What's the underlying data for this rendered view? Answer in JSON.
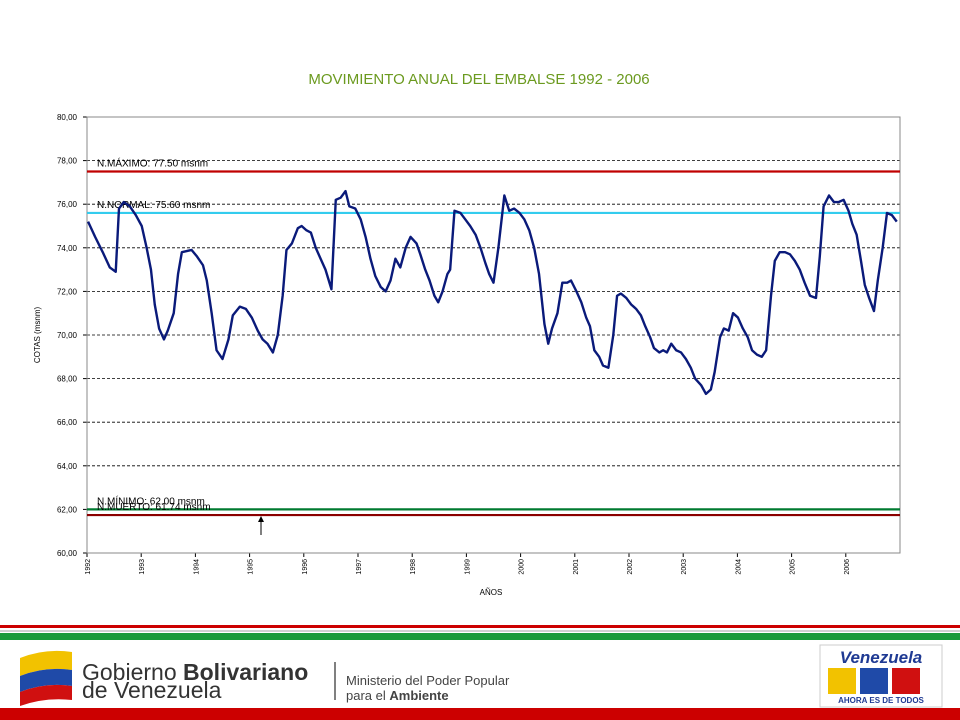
{
  "chart_data": {
    "type": "line",
    "title": "MOVIMIENTO ANUAL DEL EMBALSE 1992 - 2006",
    "xlabel": "AÑOS",
    "ylabel": "COTAS (msnm)",
    "color": "#0a1a7a",
    "grid": true,
    "xlim": [
      1992,
      2007
    ],
    "xticks": [
      1992,
      1993,
      1994,
      1995,
      1996,
      1997,
      1998,
      1999,
      2000,
      2001,
      2002,
      2003,
      2004,
      2005,
      2006
    ],
    "ylim": [
      60,
      80
    ],
    "yticks": [
      {
        "value": 60,
        "label": "60,00"
      },
      {
        "value": 62,
        "label": "62,00"
      },
      {
        "value": 64,
        "label": "64,00"
      },
      {
        "value": 66,
        "label": "66,00"
      },
      {
        "value": 68,
        "label": "68,00"
      },
      {
        "value": 70,
        "label": "70,00"
      },
      {
        "value": 72,
        "label": "72,00"
      },
      {
        "value": 74,
        "label": "74,00"
      },
      {
        "value": 76,
        "label": "76,00"
      },
      {
        "value": 78,
        "label": "78,00"
      },
      {
        "value": 80,
        "label": "80,00"
      }
    ],
    "reference_lines": [
      {
        "value": 77.5,
        "label": "N.MÁXIMO: 77.50 msnm",
        "color": "#c00000"
      },
      {
        "value": 75.6,
        "label": "N.NORMAL: 75.60 msnm",
        "color": "#33ccee"
      },
      {
        "value": 62,
        "label": "N.MÍNIMO: 62.00 msnm",
        "color": "#007a30"
      },
      {
        "value": 61.74,
        "label": "N.MUERTO: 61.74 msnm",
        "color": "#8b0000"
      }
    ],
    "x": [
      1992.02,
      1992.15,
      1992.29,
      1992.42,
      1992.53,
      1992.59,
      1992.68,
      1992.79,
      1992.9,
      1993.01,
      1993.1,
      1993.18,
      1993.25,
      1993.33,
      1993.42,
      1993.49,
      1993.6,
      1993.68,
      1993.75,
      1993.93,
      1994.03,
      1994.14,
      1994.21,
      1994.3,
      1994.39,
      1994.5,
      1994.61,
      1994.69,
      1994.82,
      1994.93,
      1995.04,
      1995.15,
      1995.24,
      1995.33,
      1995.43,
      1995.52,
      1995.61,
      1995.68,
      1995.78,
      1995.89,
      1995.96,
      1996.05,
      1996.13,
      1996.22,
      1996.31,
      1996.4,
      1996.51,
      1996.59,
      1996.68,
      1996.77,
      1996.84,
      1996.95,
      1997.05,
      1997.14,
      1997.23,
      1997.32,
      1997.42,
      1997.51,
      1997.6,
      1997.69,
      1997.78,
      1997.88,
      1997.97,
      1998.08,
      1998.15,
      1998.24,
      1998.32,
      1998.41,
      1998.48,
      1998.56,
      1998.65,
      1998.7,
      1998.78,
      1998.89,
      1998.98,
      1999.07,
      1999.17,
      1999.26,
      1999.35,
      1999.42,
      1999.5,
      1999.59,
      1999.7,
      1999.79,
      1999.88,
      1999.98,
      2000.07,
      2000.16,
      2000.25,
      2000.34,
      2000.44,
      2000.51,
      2000.58,
      2000.68,
      2000.77,
      2000.86,
      2000.93,
      2001.03,
      2001.12,
      2001.21,
      2001.28,
      2001.36,
      2001.45,
      2001.52,
      2001.62,
      2001.71,
      2001.78,
      2001.85,
      2001.95,
      2002.04,
      2002.13,
      2002.22,
      2002.3,
      2002.39,
      2002.46,
      2002.56,
      2002.63,
      2002.7,
      2002.78,
      2002.87,
      2002.96,
      2003.05,
      2003.14,
      2003.22,
      2003.33,
      2003.42,
      2003.51,
      2003.58,
      2003.68,
      2003.75,
      2003.84,
      2003.92,
      2004.01,
      2004.1,
      2004.19,
      2004.27,
      2004.36,
      2004.45,
      2004.53,
      2004.62,
      2004.69,
      2004.78,
      2004.88,
      2004.97,
      2005.06,
      2005.15,
      2005.24,
      2005.34,
      2005.45,
      2005.52,
      2005.59,
      2005.69,
      2005.78,
      2005.87,
      2005.96,
      2006.05,
      2006.12,
      2006.2,
      2006.28,
      2006.35,
      2006.43,
      2006.52,
      2006.59,
      2006.68,
      2006.76,
      2006.85,
      2006.94
    ],
    "values": [
      75.2,
      74.5,
      73.8,
      73.1,
      72.9,
      75.8,
      76.1,
      75.9,
      75.5,
      75.0,
      74.0,
      73.0,
      71.4,
      70.3,
      69.8,
      70.2,
      71.0,
      72.8,
      73.8,
      73.9,
      73.6,
      73.2,
      72.5,
      71.0,
      69.3,
      68.9,
      69.8,
      70.9,
      71.3,
      71.2,
      70.8,
      70.2,
      69.8,
      69.6,
      69.2,
      70.0,
      71.8,
      73.9,
      74.2,
      74.9,
      75.0,
      74.8,
      74.7,
      74.0,
      73.5,
      73.0,
      72.1,
      76.2,
      76.3,
      76.6,
      75.9,
      75.8,
      75.3,
      74.5,
      73.5,
      72.7,
      72.2,
      72.0,
      72.5,
      73.5,
      73.1,
      74.0,
      74.5,
      74.2,
      73.7,
      73.0,
      72.5,
      71.8,
      71.5,
      72.0,
      72.8,
      73.0,
      75.7,
      75.6,
      75.3,
      75.0,
      74.6,
      74.0,
      73.3,
      72.8,
      72.4,
      74.0,
      76.4,
      75.7,
      75.8,
      75.6,
      75.3,
      74.8,
      74.0,
      72.8,
      70.5,
      69.6,
      70.3,
      71.0,
      72.4,
      72.4,
      72.5,
      72.0,
      71.5,
      70.8,
      70.4,
      69.3,
      69.0,
      68.6,
      68.5,
      70.0,
      71.8,
      71.9,
      71.7,
      71.4,
      71.2,
      70.9,
      70.4,
      69.9,
      69.4,
      69.2,
      69.3,
      69.2,
      69.6,
      69.3,
      69.2,
      68.9,
      68.5,
      68.0,
      67.7,
      67.3,
      67.5,
      68.3,
      69.9,
      70.3,
      70.2,
      71.0,
      70.8,
      70.3,
      69.9,
      69.3,
      69.1,
      69.0,
      69.3,
      71.8,
      73.4,
      73.8,
      73.8,
      73.7,
      73.4,
      73.0,
      72.4,
      71.8,
      71.7,
      73.6,
      75.9,
      76.4,
      76.1,
      76.1,
      76.2,
      75.7,
      75.1,
      74.6,
      73.4,
      72.3,
      71.7,
      71.1,
      72.5,
      74.0,
      75.6,
      75.5,
      75.2
    ]
  },
  "footer": {
    "gov_1": "Gobierno",
    "gov_bold": "Bolivariano",
    "gov_2": "de Venezuela",
    "ministry_1": "Ministerio del Poder Popular",
    "ministry_2": "para el",
    "ministry_bold": "Ambiente",
    "brand": "Venezuela",
    "slogan": "AHORA ES DE TODOS"
  }
}
